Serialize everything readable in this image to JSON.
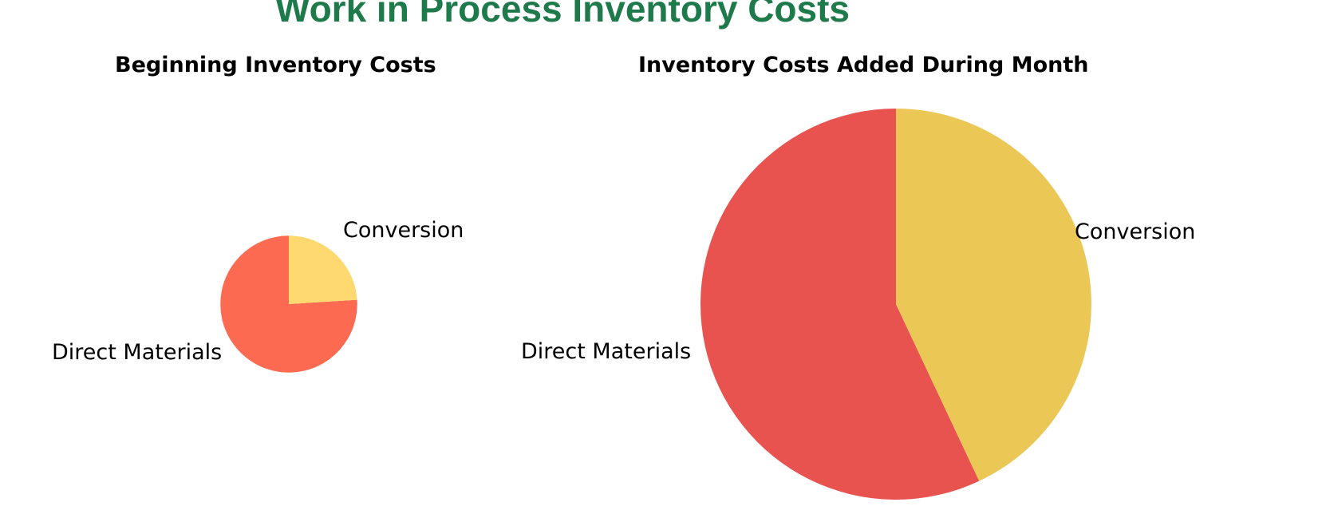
{
  "page": {
    "title": "Work in Process Inventory Costs"
  },
  "chart_data": [
    {
      "type": "pie",
      "title": "Beginning Inventory Costs",
      "labels": [
        "Direct Materials",
        "Conversion"
      ],
      "values": [
        76,
        24
      ],
      "colors": [
        "#fd6a52",
        "#fed96f"
      ],
      "size_relative": 0.35
    },
    {
      "type": "pie",
      "title": "Inventory Costs Added During Month",
      "labels": [
        "Direct Materials",
        "Conversion"
      ],
      "values": [
        57,
        43
      ],
      "colors": [
        "#e8524f",
        "#ebc855"
      ],
      "size_relative": 1.0
    }
  ]
}
